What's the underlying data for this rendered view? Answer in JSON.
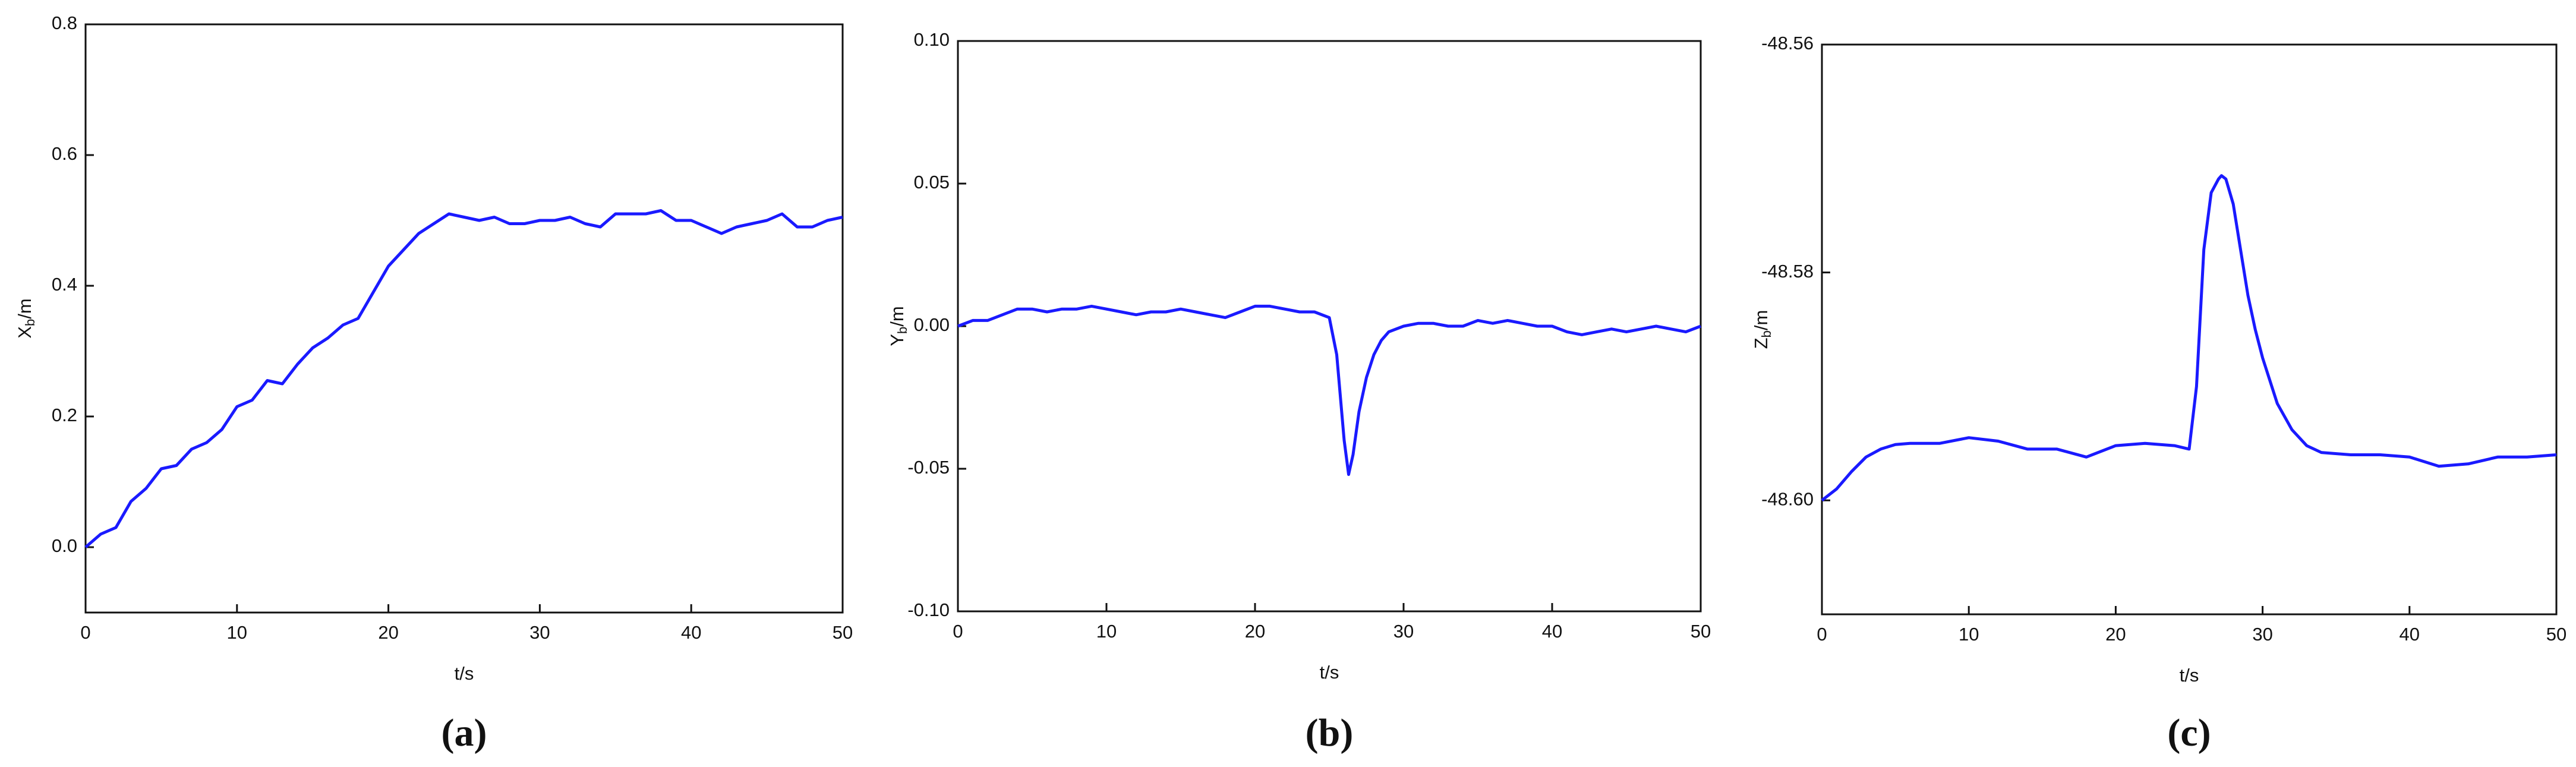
{
  "chart_data": [
    {
      "type": "line",
      "caption": "(a)",
      "xlabel": "t/s",
      "ylabel": [
        "X",
        "b",
        "/m"
      ],
      "xlim": [
        0,
        50
      ],
      "xticks": [
        0,
        10,
        20,
        30,
        40,
        50
      ],
      "ylim": [
        -0.1,
        0.8
      ],
      "yticks": [
        {
          "value": 0,
          "label": "0.0"
        },
        0.2,
        0.4,
        0.6,
        0.8
      ],
      "color": "#1a1aff",
      "x": [
        0,
        1,
        2,
        3,
        4,
        5,
        6,
        7,
        8,
        9,
        10,
        11,
        12,
        13,
        14,
        15,
        16,
        17,
        18,
        19,
        20,
        21,
        22,
        23,
        24,
        25,
        26,
        27,
        28,
        29,
        30,
        31,
        32,
        33,
        34,
        35,
        36,
        37,
        38,
        39,
        40,
        41,
        42,
        43,
        44,
        45,
        46,
        47,
        48,
        49,
        50
      ],
      "values": [
        0.0,
        0.02,
        0.03,
        0.07,
        0.09,
        0.12,
        0.125,
        0.15,
        0.16,
        0.18,
        0.215,
        0.225,
        0.255,
        0.25,
        0.28,
        0.305,
        0.32,
        0.34,
        0.35,
        0.39,
        0.43,
        0.455,
        0.48,
        0.495,
        0.51,
        0.505,
        0.5,
        0.505,
        0.495,
        0.495,
        0.5,
        0.5,
        0.505,
        0.495,
        0.49,
        0.51,
        0.51,
        0.51,
        0.515,
        0.5,
        0.5,
        0.49,
        0.48,
        0.49,
        0.495,
        0.5,
        0.51,
        0.49,
        0.49,
        0.5,
        0.505
      ]
    },
    {
      "type": "line",
      "caption": "(b)",
      "xlabel": "t/s",
      "ylabel": [
        "Y",
        "b",
        "/m"
      ],
      "xlim": [
        0,
        50
      ],
      "xticks": [
        0,
        10,
        20,
        30,
        40,
        50
      ],
      "ylim": [
        -0.1,
        0.1
      ],
      "yticks": [
        {
          "value": -0.1,
          "label": "-0.10"
        },
        -0.05,
        {
          "value": 0,
          "label": "0.00"
        },
        0.05,
        {
          "value": 0.1,
          "label": "0.10"
        }
      ],
      "color": "#1a1aff",
      "x": [
        0,
        1,
        2,
        3,
        4,
        5,
        6,
        7,
        8,
        9,
        10,
        11,
        12,
        13,
        14,
        15,
        16,
        17,
        18,
        19,
        20,
        21,
        22,
        23,
        24,
        25,
        25.5,
        26,
        26.3,
        26.6,
        27,
        27.5,
        28,
        28.5,
        29,
        30,
        31,
        32,
        33,
        34,
        35,
        36,
        37,
        38,
        39,
        40,
        41,
        42,
        43,
        44,
        45,
        46,
        47,
        48,
        49,
        50
      ],
      "values": [
        0,
        0.002,
        0.002,
        0.004,
        0.006,
        0.006,
        0.005,
        0.006,
        0.006,
        0.007,
        0.006,
        0.005,
        0.004,
        0.005,
        0.005,
        0.006,
        0.005,
        0.004,
        0.003,
        0.005,
        0.007,
        0.007,
        0.006,
        0.005,
        0.005,
        0.003,
        -0.01,
        -0.04,
        -0.052,
        -0.045,
        -0.03,
        -0.018,
        -0.01,
        -0.005,
        -0.002,
        0,
        0.001,
        0.001,
        0,
        0,
        0.002,
        0.001,
        0.002,
        0.001,
        0,
        0,
        -0.002,
        -0.003,
        -0.002,
        -0.001,
        -0.002,
        -0.001,
        0,
        -0.001,
        -0.002,
        0
      ]
    },
    {
      "type": "line",
      "caption": "(c)",
      "xlabel": "t/s",
      "ylabel": [
        "Z",
        "b",
        "/m"
      ],
      "xlim": [
        0,
        50
      ],
      "xticks": [
        0,
        10,
        20,
        30,
        40,
        50
      ],
      "ylim": [
        -48.61,
        -48.56
      ],
      "yticks": [
        {
          "value": -48.6,
          "label": "-48.60"
        },
        -48.58,
        -48.56
      ],
      "color": "#1a1aff",
      "x": [
        0,
        1,
        2,
        3,
        4,
        5,
        6,
        8,
        10,
        12,
        14,
        16,
        18,
        20,
        22,
        24,
        25,
        25.5,
        26,
        26.5,
        27,
        27.2,
        27.5,
        28,
        28.5,
        29,
        29.5,
        30,
        31,
        32,
        33,
        34,
        36,
        38,
        40,
        42,
        44,
        46,
        48,
        50
      ],
      "values": [
        -48.6,
        -48.599,
        -48.5975,
        -48.5962,
        -48.5955,
        -48.5951,
        -48.595,
        -48.595,
        -48.5945,
        -48.5948,
        -48.5955,
        -48.5955,
        -48.5962,
        -48.5952,
        -48.595,
        -48.5952,
        -48.5955,
        -48.59,
        -48.578,
        -48.573,
        -48.5718,
        -48.5715,
        -48.5718,
        -48.574,
        -48.578,
        -48.582,
        -48.585,
        -48.5875,
        -48.5915,
        -48.5938,
        -48.5952,
        -48.5958,
        -48.596,
        -48.596,
        -48.5962,
        -48.597,
        -48.5968,
        -48.5962,
        -48.5962,
        -48.596
      ]
    }
  ]
}
